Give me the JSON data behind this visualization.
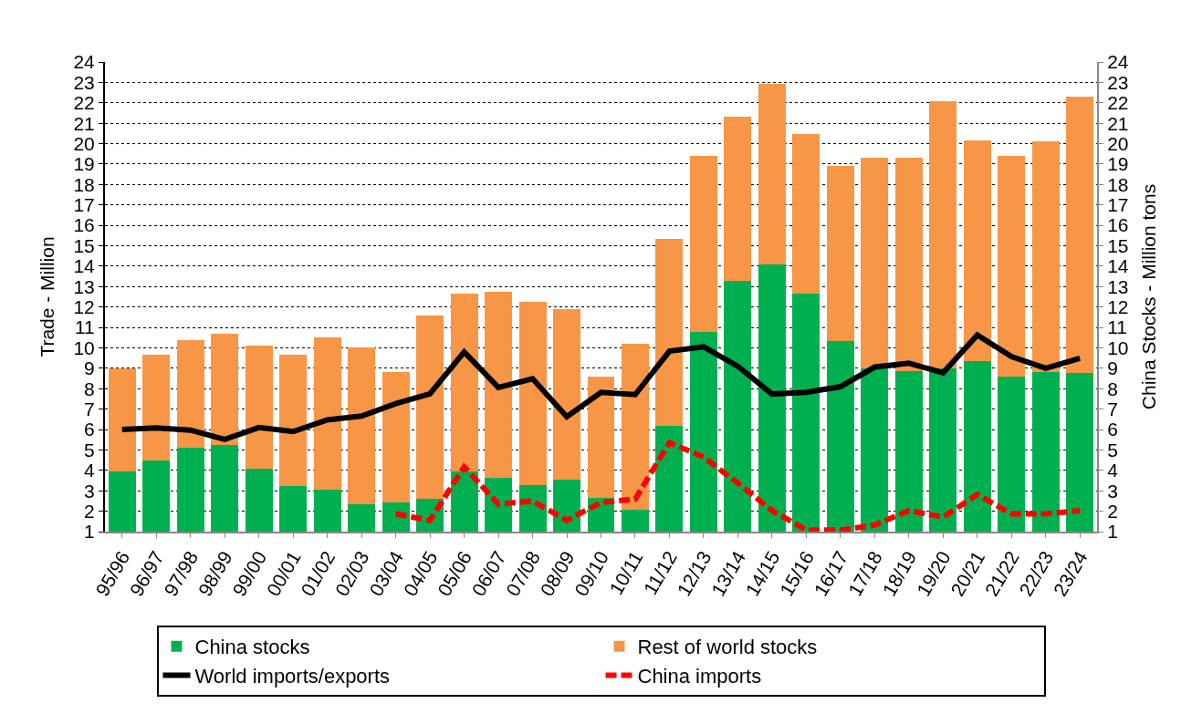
{
  "chart_data": {
    "type": "bar",
    "stacked": true,
    "ylabel": "Trade - Million",
    "y2label": "China Stocks - Million tons",
    "categories": [
      "95/96",
      "96/97",
      "97/98",
      "98/99",
      "99/00",
      "00/01",
      "01/02",
      "02/03",
      "03/04",
      "04/05",
      "05/06",
      "06/07",
      "07/08",
      "08/09",
      "09/10",
      "10/11",
      "11/12",
      "12/13",
      "13/14",
      "14/15",
      "15/16",
      "16/17",
      "17/18",
      "18/19",
      "19/20",
      "20/21",
      "21/22",
      "22/23",
      "23/24"
    ],
    "series": [
      {
        "name": "China stocks",
        "axis": "y2",
        "color": "#00b050",
        "values": [
          3.95,
          4.5,
          5.13,
          5.25,
          4.06,
          3.24,
          3.06,
          2.35,
          2.43,
          2.59,
          3.97,
          3.62,
          3.27,
          3.55,
          2.65,
          2.06,
          6.16,
          10.8,
          13.26,
          14.09,
          12.66,
          10.35,
          9.0,
          8.86,
          9.0,
          9.37,
          8.59,
          8.82,
          8.78
        ]
      },
      {
        "name": "Rest of world stocks",
        "axis": "y2",
        "color": "#f79646",
        "values": [
          5.05,
          5.15,
          5.27,
          5.42,
          6.04,
          6.42,
          7.46,
          7.65,
          6.37,
          9.01,
          8.68,
          9.11,
          8.98,
          8.35,
          5.95,
          8.14,
          9.18,
          8.62,
          8.06,
          8.85,
          7.81,
          8.54,
          10.33,
          10.44,
          13.1,
          10.81,
          10.83,
          11.29,
          13.52
        ]
      },
      {
        "name": "World imports/exports",
        "type": "line",
        "axis": "y",
        "color": "#000000",
        "line_style": "solid",
        "values": [
          6.0,
          6.08,
          5.97,
          5.52,
          6.1,
          5.9,
          6.47,
          6.66,
          7.27,
          7.75,
          9.8,
          8.06,
          8.49,
          6.63,
          7.82,
          7.71,
          9.84,
          10.05,
          9.1,
          7.74,
          7.82,
          8.1,
          9.06,
          9.25,
          8.78,
          10.63,
          9.57,
          9.0,
          9.49
        ]
      },
      {
        "name": "China imports",
        "type": "line",
        "axis": "y",
        "color": "#ff0000",
        "line_style": "dashed",
        "values": [
          null,
          null,
          null,
          null,
          null,
          null,
          null,
          null,
          1.87,
          1.55,
          4.17,
          2.35,
          2.5,
          1.55,
          2.43,
          2.59,
          5.36,
          4.65,
          3.38,
          2.03,
          1.08,
          1.08,
          1.32,
          2.03,
          1.71,
          2.82,
          1.87,
          1.87,
          2.03
        ]
      }
    ],
    "ylim": [
      1,
      24
    ],
    "yticks": [
      1,
      2,
      3,
      4,
      5,
      6,
      7,
      8,
      9,
      10,
      11,
      12,
      13,
      14,
      15,
      16,
      17,
      18,
      19,
      20,
      21,
      22,
      23,
      24
    ],
    "y2lim": [
      1,
      24
    ],
    "y2ticks": [
      1,
      2,
      3,
      4,
      5,
      6,
      7,
      8,
      9,
      10,
      11,
      12,
      13,
      14,
      15,
      16,
      17,
      18,
      19,
      20,
      21,
      22,
      23,
      24
    ],
    "grid": "y",
    "legend": "bottom",
    "marker": "none"
  }
}
